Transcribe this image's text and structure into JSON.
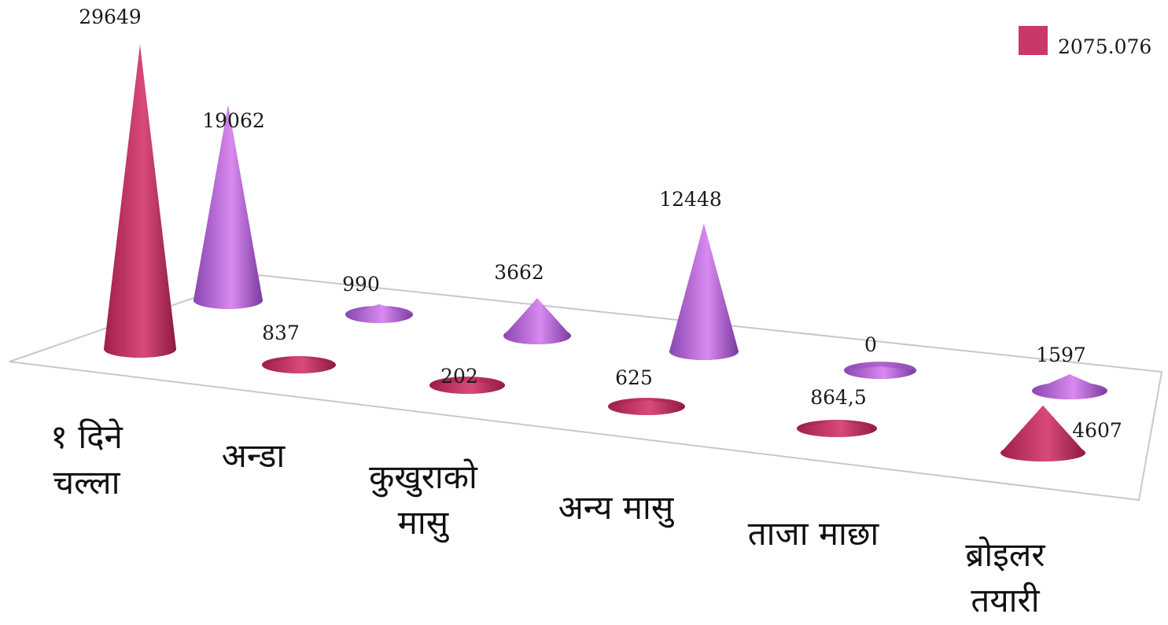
{
  "chart_data": {
    "type": "bar",
    "shape": "3d-cone",
    "categories": [
      "१ दिने चल्ला",
      "अन्डा",
      "कुखुराको मासु",
      "अन्य मासु",
      "ताजा माछा",
      "ब्रोइलर तयारी"
    ],
    "category_lines": [
      [
        "१ दिने",
        "चल्ला"
      ],
      [
        "अन्डा"
      ],
      [
        "कुखुराको",
        "मासु"
      ],
      [
        "अन्य मासु"
      ],
      [
        "ताजा माछा"
      ],
      [
        "ब्रोइलर",
        "तयारी"
      ]
    ],
    "series": [
      {
        "name": "2075.076",
        "color": "#c8386a",
        "values": [
          29649,
          837,
          202,
          625,
          864.5,
          4607
        ],
        "labels": [
          "29649",
          "837",
          "202",
          "625",
          "864,5",
          "4607"
        ]
      },
      {
        "name": "",
        "color": "#b463d2",
        "values": [
          19062,
          990,
          3662,
          12448,
          0,
          1597
        ],
        "labels": [
          "19062",
          "990",
          "3662",
          "12448",
          "0",
          "1597"
        ]
      }
    ],
    "legend": {
      "position": "top-right",
      "entries": [
        "2075.076"
      ]
    },
    "grid": false
  }
}
